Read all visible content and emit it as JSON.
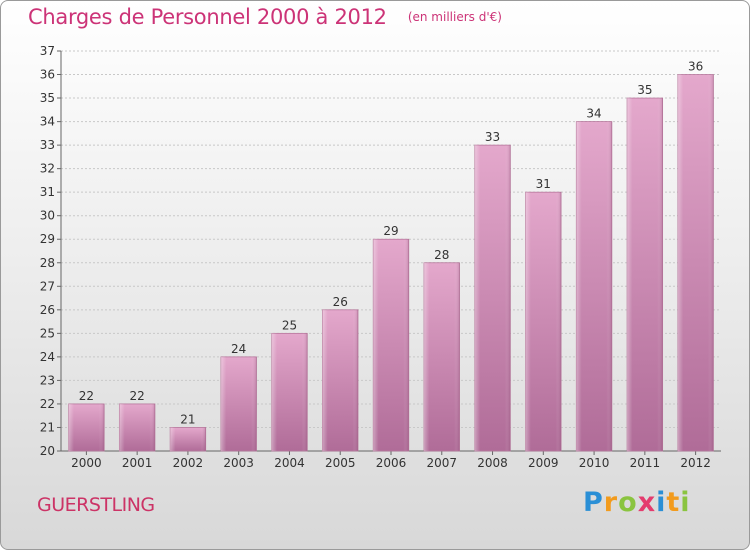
{
  "header": {
    "title": "Charges de Personnel 2000 à 2012",
    "unit": "(en milliers d'€)"
  },
  "footer": {
    "commune": "GUERSTLING",
    "logo_text": "Proxiti"
  },
  "colors": {
    "bar": "#c875a6",
    "title": "#cc3377",
    "commune": "#cc3366"
  },
  "chart_data": {
    "type": "bar",
    "title": "Charges de Personnel 2000 à 2012",
    "subtitle": "(en milliers d'€)",
    "categories": [
      "2000",
      "2001",
      "2002",
      "2003",
      "2004",
      "2005",
      "2006",
      "2007",
      "2008",
      "2009",
      "2010",
      "2011",
      "2012"
    ],
    "values": [
      22,
      22,
      21,
      24,
      25,
      26,
      29,
      28,
      33,
      31,
      34,
      35,
      36
    ],
    "xlabel": "",
    "ylabel": "",
    "ylim": [
      20,
      37
    ],
    "yticks": [
      20,
      21,
      22,
      23,
      24,
      25,
      26,
      27,
      28,
      29,
      30,
      31,
      32,
      33,
      34,
      35,
      36,
      37
    ],
    "grid": true,
    "legend": "none"
  }
}
